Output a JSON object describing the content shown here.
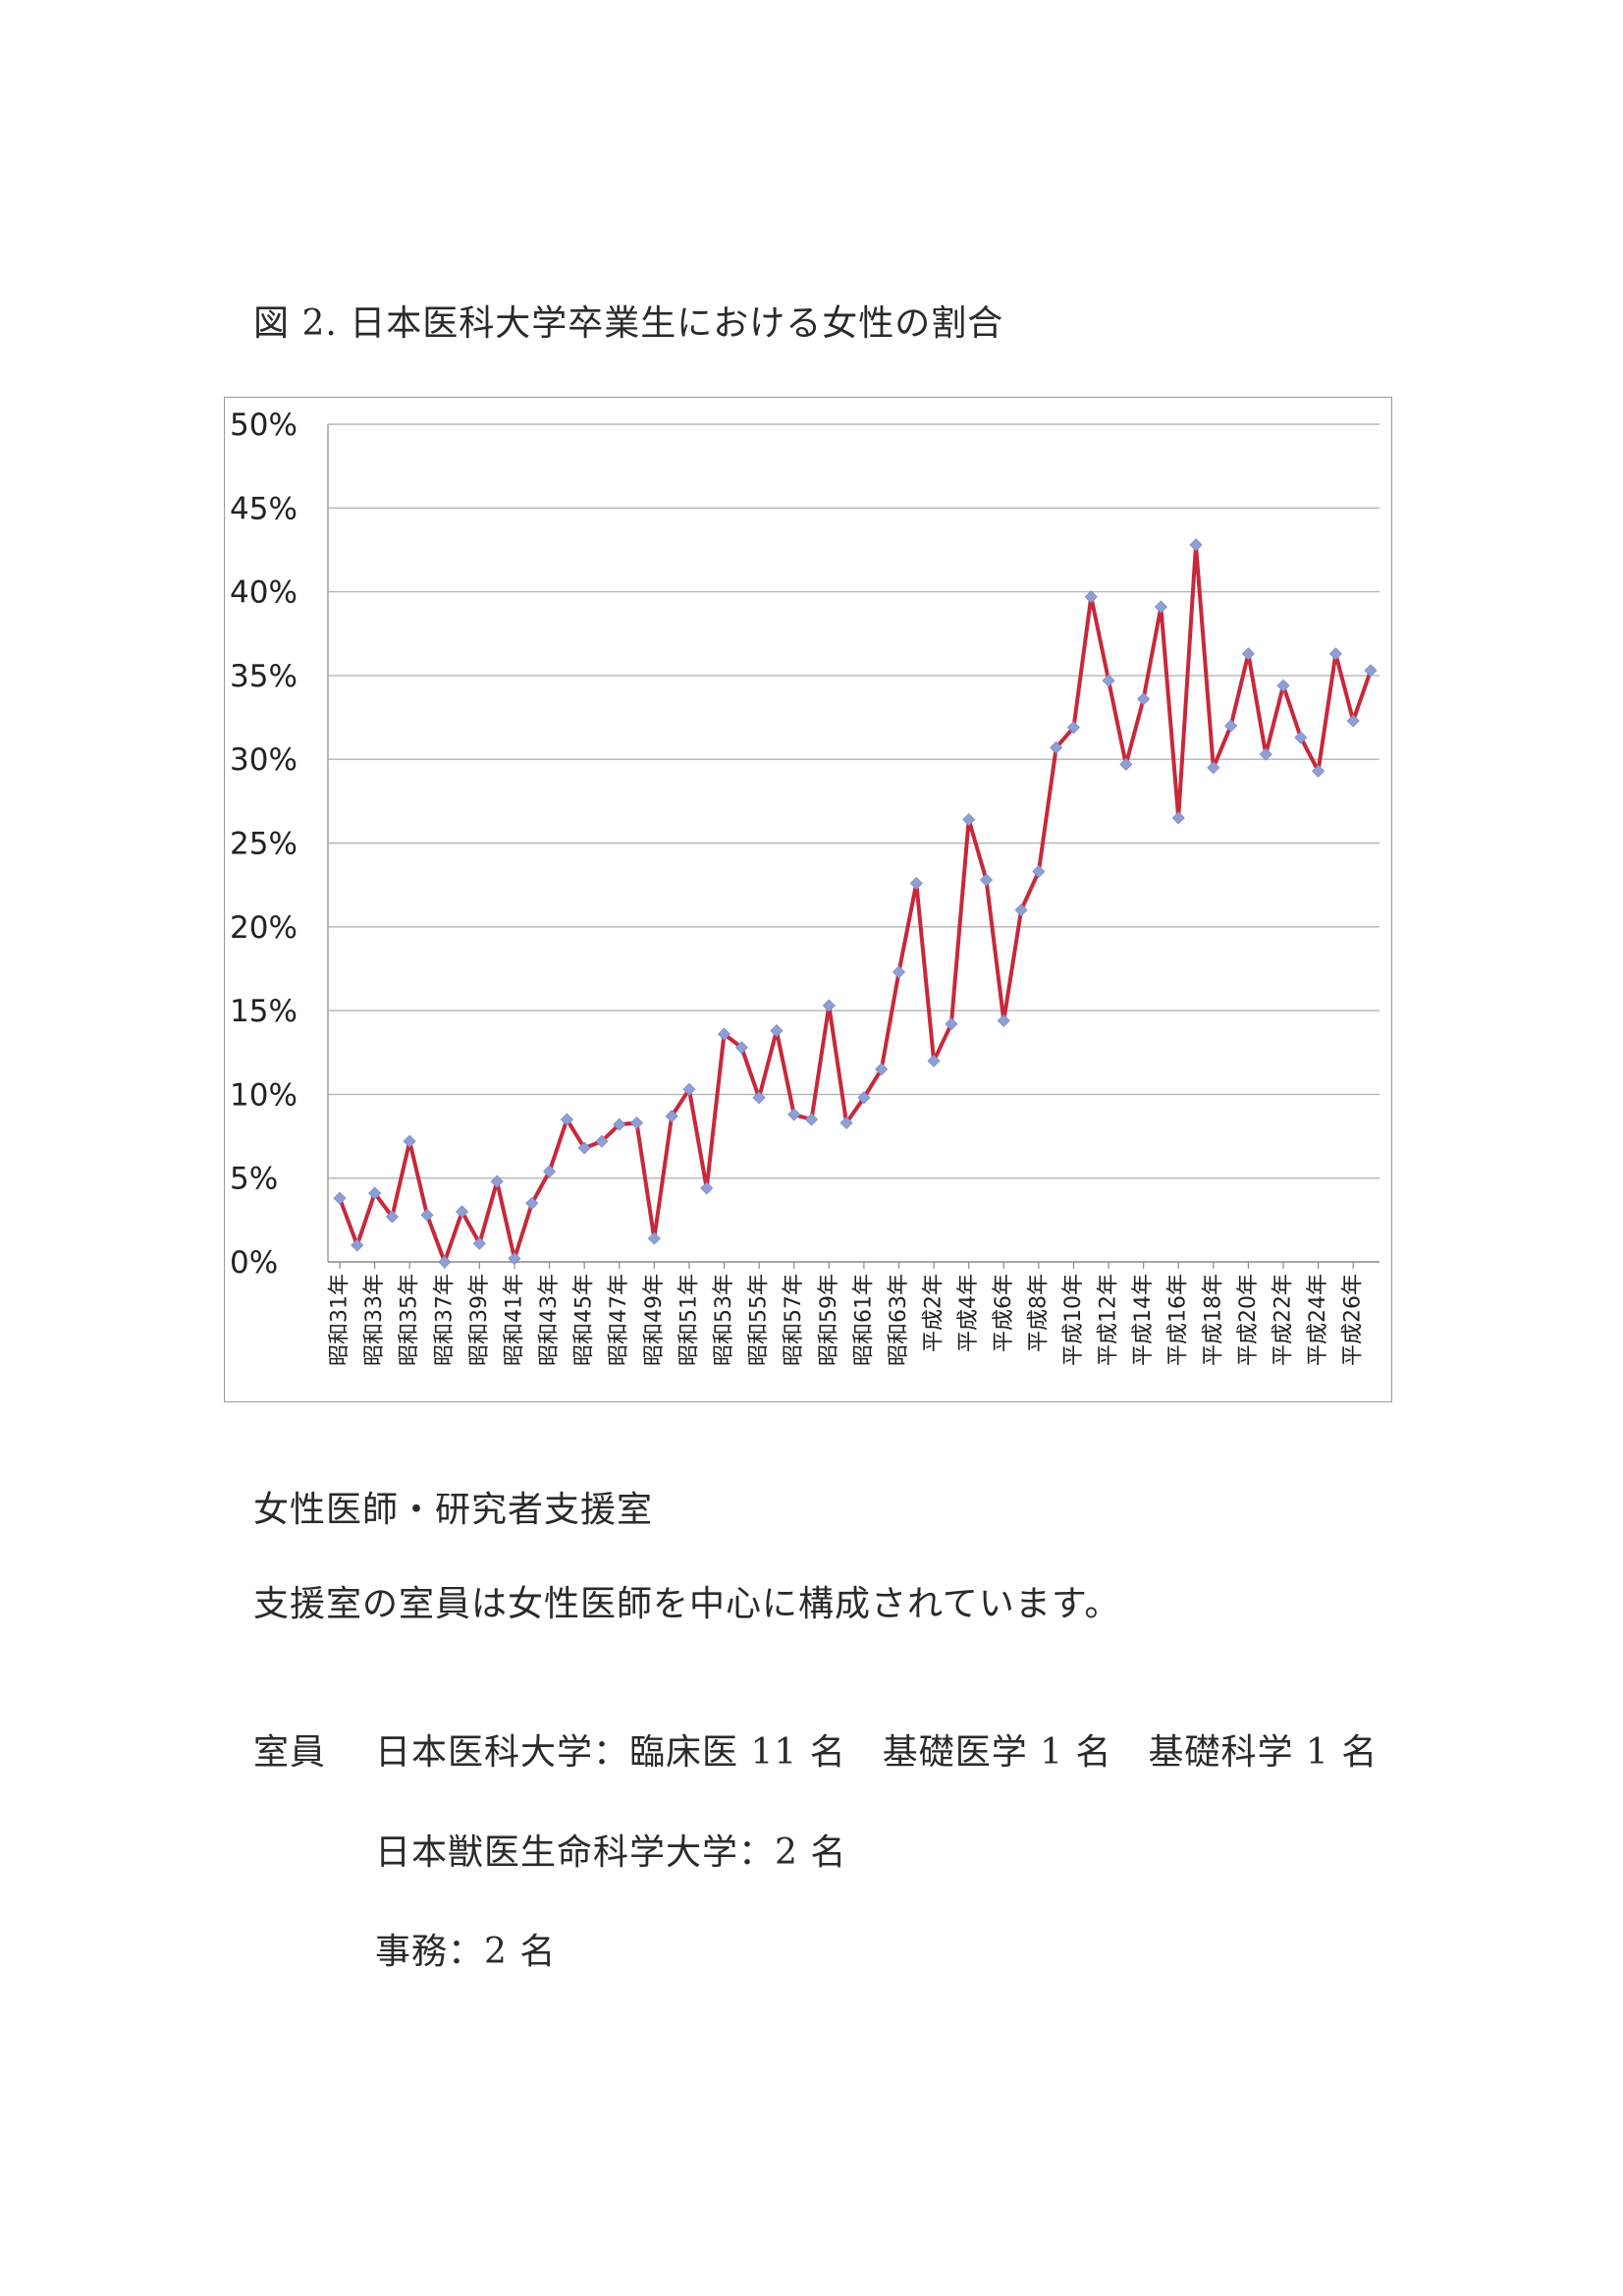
{
  "document": {
    "caption": "図 2.  日本医科大学卒業生における女性の割合",
    "section_title": "女性医師・研究者支援室",
    "description": "支援室の室員は女性医師を中心に構成されています。",
    "staff": {
      "label": "室員",
      "line1": "日本医科大学：臨床医 11 名　基礎医学 1 名　基礎科学 1 名",
      "line2": "日本獣医生命科学大学：2 名",
      "line3": "事務：2 名"
    }
  },
  "chart_data": {
    "type": "line",
    "title": "図 2.  日本医科大学卒業生における女性の割合",
    "xlabel": "",
    "ylabel": "",
    "ylim": [
      0,
      50
    ],
    "yticks": [
      "0%",
      "5%",
      "10%",
      "15%",
      "20%",
      "25%",
      "30%",
      "35%",
      "40%",
      "45%",
      "50%"
    ],
    "grid": true,
    "line_color": "#c8283a",
    "marker_color": "#8f9fd6",
    "x": [
      "昭和31年",
      "昭和32年",
      "昭和33年",
      "昭和34年",
      "昭和35年",
      "昭和36年",
      "昭和37年",
      "昭和38年",
      "昭和39年",
      "昭和40年",
      "昭和41年",
      "昭和42年",
      "昭和43年",
      "昭和44年",
      "昭和45年",
      "昭和46年",
      "昭和47年",
      "昭和48年",
      "昭和49年",
      "昭和50年",
      "昭和51年",
      "昭和52年",
      "昭和53年",
      "昭和54年",
      "昭和55年",
      "昭和56年",
      "昭和57年",
      "昭和58年",
      "昭和59年",
      "昭和60年",
      "昭和61年",
      "昭和62年",
      "昭和63年",
      "平成元年",
      "平成2年",
      "平成3年",
      "平成4年",
      "平成5年",
      "平成6年",
      "平成7年",
      "平成8年",
      "平成9年",
      "平成10年",
      "平成11年",
      "平成12年",
      "平成13年",
      "平成14年",
      "平成15年",
      "平成16年",
      "平成17年",
      "平成18年",
      "平成19年",
      "平成20年",
      "平成21年",
      "平成22年",
      "平成23年",
      "平成24年",
      "平成25年",
      "平成26年",
      "平成27年"
    ],
    "xtick_labels": [
      "昭和31年",
      "昭和33年",
      "昭和35年",
      "昭和37年",
      "昭和39年",
      "昭和41年",
      "昭和43年",
      "昭和45年",
      "昭和47年",
      "昭和49年",
      "昭和51年",
      "昭和53年",
      "昭和55年",
      "昭和57年",
      "昭和59年",
      "昭和61年",
      "昭和63年",
      "平成2年",
      "平成4年",
      "平成6年",
      "平成8年",
      "平成10年",
      "平成12年",
      "平成14年",
      "平成16年",
      "平成18年",
      "平成20年",
      "平成22年",
      "平成24年",
      "平成26年"
    ],
    "values": [
      3.8,
      1.0,
      4.1,
      2.7,
      7.2,
      2.8,
      0.0,
      3.0,
      1.1,
      4.8,
      0.2,
      3.5,
      5.4,
      8.5,
      6.8,
      7.2,
      8.2,
      8.3,
      1.4,
      8.7,
      10.3,
      4.4,
      13.6,
      12.8,
      9.8,
      13.8,
      8.8,
      8.5,
      15.3,
      8.3,
      9.8,
      11.5,
      17.3,
      22.6,
      12.0,
      14.2,
      26.4,
      22.8,
      14.4,
      21.0,
      23.3,
      30.7,
      31.9,
      39.7,
      34.7,
      29.7,
      33.6,
      39.1,
      26.5,
      42.8,
      29.5,
      32.0,
      36.3,
      30.3,
      34.4,
      31.3,
      29.3,
      36.3,
      32.3,
      35.3
    ]
  }
}
